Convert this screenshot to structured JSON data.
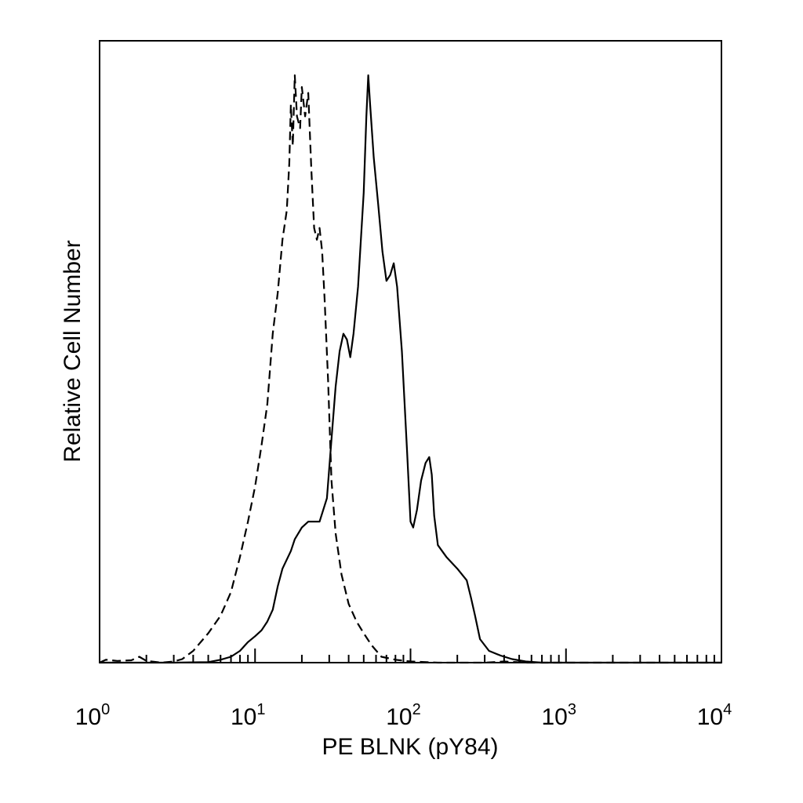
{
  "chart_data": {
    "type": "line",
    "title": "",
    "xlabel": "PE BLNK (pY84)",
    "ylabel": "Relative Cell Number",
    "xscale": "log",
    "xlim": [
      1,
      10000
    ],
    "ylim": [
      0,
      1.0
    ],
    "grid": false,
    "legend": "none",
    "x_ticks": [
      {
        "base": "10",
        "exp": "0"
      },
      {
        "base": "10",
        "exp": "1"
      },
      {
        "base": "10",
        "exp": "2"
      },
      {
        "base": "10",
        "exp": "3"
      },
      {
        "base": "10",
        "exp": "4"
      }
    ],
    "series": [
      {
        "style": "dashed",
        "color": "#000000",
        "points": [
          [
            1.0,
            0.0
          ],
          [
            1.1,
            0.005
          ],
          [
            1.3,
            0.003
          ],
          [
            1.6,
            0.004
          ],
          [
            1.8,
            0.01
          ],
          [
            2.0,
            0.003
          ],
          [
            2.5,
            0.0
          ],
          [
            3.0,
            0.002
          ],
          [
            3.4,
            0.006
          ],
          [
            4.0,
            0.02
          ],
          [
            5.0,
            0.05
          ],
          [
            6.0,
            0.08
          ],
          [
            7.0,
            0.12
          ],
          [
            8.0,
            0.18
          ],
          [
            9.0,
            0.24
          ],
          [
            10.0,
            0.3
          ],
          [
            11.0,
            0.37
          ],
          [
            12.0,
            0.44
          ],
          [
            13.0,
            0.56
          ],
          [
            14.0,
            0.63
          ],
          [
            15.0,
            0.72
          ],
          [
            16.0,
            0.77
          ],
          [
            16.6,
            0.85
          ],
          [
            17.0,
            0.95
          ],
          [
            17.5,
            0.88
          ],
          [
            18.0,
            1.0
          ],
          [
            18.6,
            0.93
          ],
          [
            19.5,
            0.91
          ],
          [
            20.0,
            0.98
          ],
          [
            21.0,
            0.93
          ],
          [
            22.0,
            0.97
          ],
          [
            23.0,
            0.84
          ],
          [
            24.0,
            0.74
          ],
          [
            25.0,
            0.72
          ],
          [
            26.0,
            0.74
          ],
          [
            27.0,
            0.7
          ],
          [
            28.0,
            0.62
          ],
          [
            29.5,
            0.48
          ],
          [
            31.0,
            0.31
          ],
          [
            33.0,
            0.22
          ],
          [
            36.0,
            0.15
          ],
          [
            40.0,
            0.1
          ],
          [
            45.0,
            0.07
          ],
          [
            50.0,
            0.05
          ],
          [
            56.0,
            0.03
          ],
          [
            65.0,
            0.01
          ],
          [
            80.0,
            0.005
          ],
          [
            100.0,
            0.002
          ],
          [
            150.0,
            0.0
          ],
          [
            300.0,
            0.0
          ],
          [
            400.0,
            0.002
          ],
          [
            550.0,
            0.0
          ],
          [
            1000.0,
            0.0
          ],
          [
            10000.0,
            0.0
          ]
        ]
      },
      {
        "style": "solid",
        "color": "#000000",
        "points": [
          [
            1.0,
            0.0
          ],
          [
            3.0,
            0.0
          ],
          [
            5.0,
            0.001
          ],
          [
            6.0,
            0.005
          ],
          [
            7.0,
            0.01
          ],
          [
            8.0,
            0.02
          ],
          [
            9.0,
            0.035
          ],
          [
            10.0,
            0.045
          ],
          [
            11.0,
            0.055
          ],
          [
            12.0,
            0.07
          ],
          [
            13.0,
            0.09
          ],
          [
            14.0,
            0.13
          ],
          [
            15.0,
            0.16
          ],
          [
            17.0,
            0.19
          ],
          [
            18.0,
            0.21
          ],
          [
            20.0,
            0.23
          ],
          [
            22.0,
            0.24
          ],
          [
            24.0,
            0.24
          ],
          [
            26.0,
            0.24
          ],
          [
            29.0,
            0.28
          ],
          [
            31.0,
            0.38
          ],
          [
            33.0,
            0.47
          ],
          [
            35.0,
            0.53
          ],
          [
            37.0,
            0.56
          ],
          [
            39.0,
            0.55
          ],
          [
            41.0,
            0.52
          ],
          [
            43.0,
            0.56
          ],
          [
            46.0,
            0.64
          ],
          [
            50.0,
            0.8
          ],
          [
            52.0,
            0.93
          ],
          [
            53.5,
            1.0
          ],
          [
            55.0,
            0.95
          ],
          [
            58.0,
            0.86
          ],
          [
            62.0,
            0.78
          ],
          [
            66.0,
            0.7
          ],
          [
            70.0,
            0.65
          ],
          [
            74.0,
            0.66
          ],
          [
            78.0,
            0.68
          ],
          [
            82.0,
            0.64
          ],
          [
            88.0,
            0.53
          ],
          [
            95.0,
            0.36
          ],
          [
            100.0,
            0.24
          ],
          [
            104.0,
            0.23
          ],
          [
            110.0,
            0.26
          ],
          [
            117.0,
            0.31
          ],
          [
            125.0,
            0.34
          ],
          [
            132.0,
            0.35
          ],
          [
            137.0,
            0.32
          ],
          [
            142.0,
            0.25
          ],
          [
            150.0,
            0.2
          ],
          [
            170.0,
            0.18
          ],
          [
            200.0,
            0.16
          ],
          [
            230.0,
            0.14
          ],
          [
            245.0,
            0.11
          ],
          [
            260.0,
            0.08
          ],
          [
            280.0,
            0.04
          ],
          [
            320.0,
            0.02
          ],
          [
            380.0,
            0.012
          ],
          [
            450.0,
            0.006
          ],
          [
            550.0,
            0.002
          ],
          [
            700.0,
            0.0
          ],
          [
            10000.0,
            0.0
          ]
        ]
      }
    ]
  }
}
